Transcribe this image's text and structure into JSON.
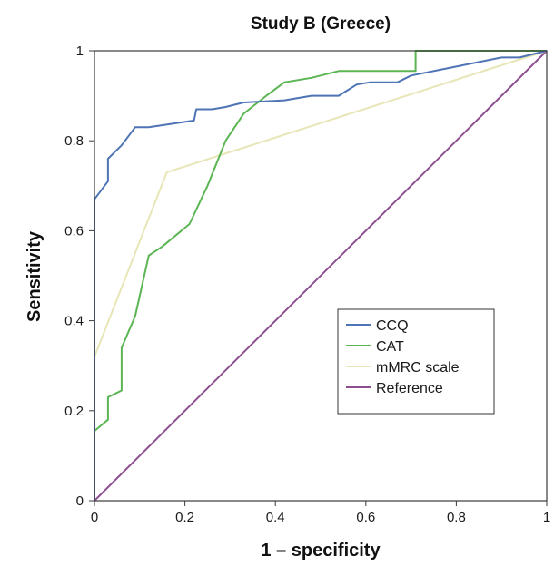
{
  "chart_data": {
    "type": "line",
    "title": "Study B (Greece)",
    "xlabel": "1 – specificity",
    "ylabel": "Sensitivity",
    "xlim": [
      0,
      1
    ],
    "ylim": [
      0,
      1
    ],
    "x_ticks": [
      "0",
      "0.2",
      "0.4",
      "0.6",
      "0.8",
      "1"
    ],
    "y_ticks": [
      "0",
      "0.2",
      "0.4",
      "0.6",
      "0.8",
      "1"
    ],
    "grid": false,
    "legend_position": "bottom-right",
    "series": [
      {
        "name": "CCQ",
        "color": "#4e74b5",
        "points": [
          [
            0,
            0
          ],
          [
            0,
            0.67
          ],
          [
            0.03,
            0.71
          ],
          [
            0.03,
            0.76
          ],
          [
            0.06,
            0.79
          ],
          [
            0.09,
            0.83
          ],
          [
            0.12,
            0.83
          ],
          [
            0.22,
            0.845
          ],
          [
            0.225,
            0.87
          ],
          [
            0.26,
            0.87
          ],
          [
            0.29,
            0.875
          ],
          [
            0.33,
            0.885
          ],
          [
            0.42,
            0.89
          ],
          [
            0.48,
            0.9
          ],
          [
            0.54,
            0.9
          ],
          [
            0.58,
            0.925
          ],
          [
            0.61,
            0.93
          ],
          [
            0.67,
            0.93
          ],
          [
            0.7,
            0.945
          ],
          [
            0.8,
            0.965
          ],
          [
            0.9,
            0.985
          ],
          [
            0.94,
            0.985
          ],
          [
            1,
            1
          ]
        ]
      },
      {
        "name": "CAT",
        "color": "#5ab552",
        "points": [
          [
            0,
            0
          ],
          [
            0,
            0.155
          ],
          [
            0.03,
            0.18
          ],
          [
            0.03,
            0.23
          ],
          [
            0.06,
            0.245
          ],
          [
            0.06,
            0.34
          ],
          [
            0.09,
            0.41
          ],
          [
            0.12,
            0.545
          ],
          [
            0.15,
            0.565
          ],
          [
            0.21,
            0.615
          ],
          [
            0.25,
            0.7
          ],
          [
            0.29,
            0.8
          ],
          [
            0.33,
            0.86
          ],
          [
            0.38,
            0.9
          ],
          [
            0.42,
            0.93
          ],
          [
            0.48,
            0.94
          ],
          [
            0.54,
            0.955
          ],
          [
            0.71,
            0.955
          ],
          [
            0.71,
            1
          ],
          [
            1,
            1
          ]
        ]
      },
      {
        "name": "mMRC scale",
        "color": "#e8e5b6",
        "points": [
          [
            0,
            0
          ],
          [
            0,
            0.32
          ],
          [
            0.16,
            0.73
          ],
          [
            1,
            1
          ]
        ]
      },
      {
        "name": "Reference",
        "color": "#8e4f91",
        "points": [
          [
            0,
            0
          ],
          [
            1,
            1
          ]
        ]
      }
    ]
  }
}
